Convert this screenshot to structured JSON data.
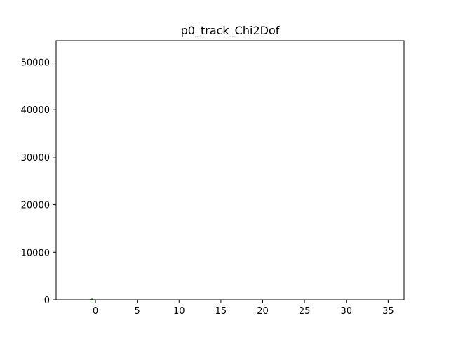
{
  "chart_data": {
    "type": "histogram",
    "title": "p0_track_Chi2Dof",
    "xlabel": "",
    "ylabel": "",
    "xlim": [
      -4.7,
      36.9
    ],
    "ylim": [
      0,
      54500
    ],
    "xticks": [
      0,
      5,
      10,
      15,
      20,
      25,
      30,
      35
    ],
    "yticks": [
      0,
      10000,
      20000,
      30000,
      40000,
      50000
    ],
    "grid": false,
    "legend": "none",
    "series": [
      {
        "color": "#2ca02c",
        "bins": [
          {
            "x0": -1.1,
            "x1": -0.9,
            "value": 40
          },
          {
            "x0": -0.9,
            "x1": -0.7,
            "value": 60
          },
          {
            "x0": -0.7,
            "x1": -0.5,
            "value": 120
          },
          {
            "x0": -0.5,
            "x1": -0.3,
            "value": 260
          },
          {
            "x0": -0.3,
            "x1": -0.1,
            "value": 90
          }
        ]
      }
    ]
  }
}
